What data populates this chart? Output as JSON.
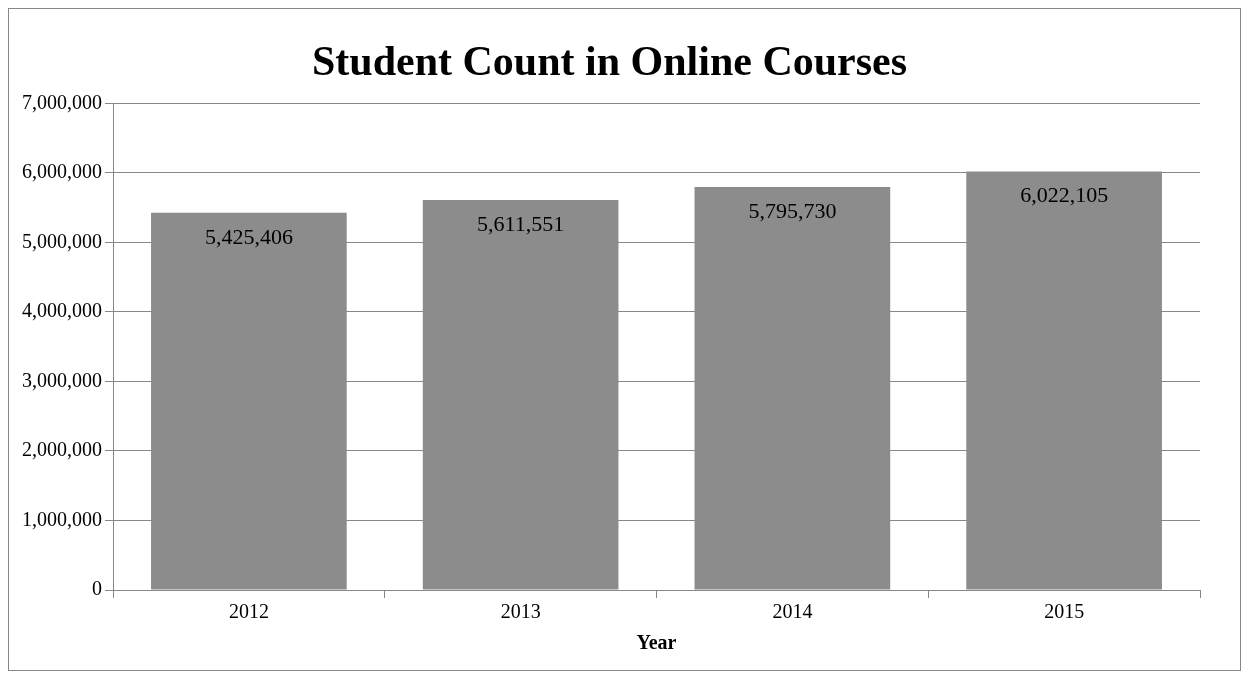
{
  "chart_data": {
    "type": "bar",
    "title": "Student Count in Online Courses",
    "xlabel": "Year",
    "categories": [
      "2012",
      "2013",
      "2014",
      "2015"
    ],
    "values": [
      5425406,
      5611551,
      5795730,
      6022105
    ],
    "value_labels": [
      "5,425,406",
      "5,611,551",
      "5,795,730",
      "6,022,105"
    ],
    "color": "#8c8c8c",
    "ylim": [
      0,
      7000000
    ],
    "yticks": [
      0,
      {
        "value": 1000000,
        "label": "1,000,000"
      },
      {
        "value": 2000000,
        "label": "2,000,000"
      },
      {
        "value": 3000000,
        "label": "3,000,000"
      },
      {
        "value": 4000000,
        "label": "4,000,000"
      },
      {
        "value": 5000000,
        "label": "5,000,000"
      },
      {
        "value": 6000000,
        "label": "6,000,000"
      },
      {
        "value": 7000000,
        "label": "7,000,000"
      }
    ],
    "grid": "y",
    "legend": false
  }
}
